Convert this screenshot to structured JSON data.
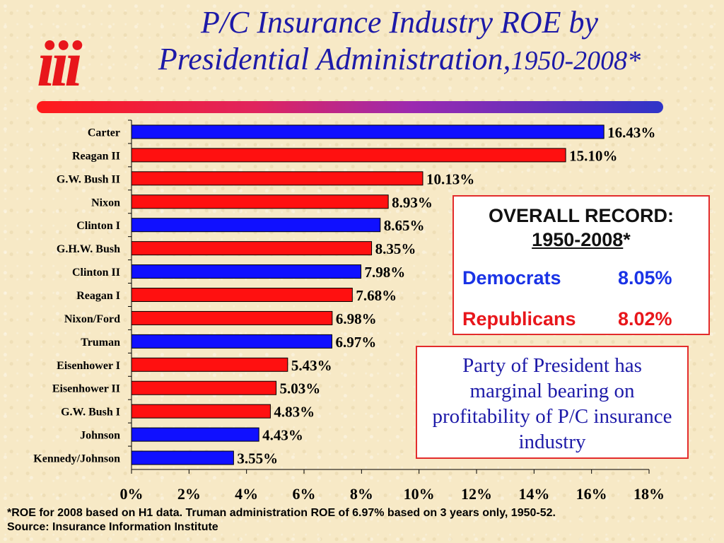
{
  "slide": {
    "title_line1": "P/C Insurance Industry ROE by",
    "title_line2": "Presidential Administration,",
    "title_years": "1950-2008*",
    "logo_text": "iii"
  },
  "record_box": {
    "heading_line1": "OVERALL RECORD:",
    "heading_years": "1950-2008",
    "heading_mark": "*",
    "democrats_label": "Democrats",
    "democrats_value": "8.05%",
    "republicans_label": "Republicans",
    "republicans_value": "8.02%",
    "democrats_color": "#1a33e6",
    "republicans_color": "#e8161b"
  },
  "note_box": {
    "text": "Party of President has marginal bearing on profitability of P/C insurance industry"
  },
  "footer": {
    "line1": "*ROE for 2008 based on H1 data.  Truman administration ROE of 6.97% based on 3 years only, 1950-52.",
    "line2": "Source: Insurance Information Institute"
  },
  "chart_data": {
    "type": "bar",
    "orientation": "horizontal",
    "categories": [
      "Carter",
      "Reagan II",
      "G.W. Bush II",
      "Nixon",
      "Clinton I",
      "G.H.W. Bush",
      "Clinton II",
      "Reagan I",
      "Nixon/Ford",
      "Truman",
      "Eisenhower I",
      "Eisenhower II",
      "G.W. Bush I",
      "Johnson",
      "Kennedy/Johnson"
    ],
    "values": [
      16.43,
      15.1,
      10.13,
      8.93,
      8.65,
      8.35,
      7.98,
      7.68,
      6.98,
      6.97,
      5.43,
      5.03,
      4.83,
      4.43,
      3.55
    ],
    "value_labels": [
      "16.43%",
      "15.10%",
      "10.13%",
      "8.93%",
      "8.65%",
      "8.35%",
      "7.98%",
      "7.68%",
      "6.98%",
      "6.97%",
      "5.43%",
      "5.03%",
      "4.83%",
      "4.43%",
      "3.55%"
    ],
    "party": [
      "D",
      "R",
      "R",
      "R",
      "D",
      "R",
      "D",
      "R",
      "R",
      "D",
      "R",
      "R",
      "R",
      "D",
      "D"
    ],
    "colors": {
      "D": "#1010ff",
      "R": "#ff1010"
    },
    "xlim": [
      0,
      18
    ],
    "xticks": [
      0,
      2,
      4,
      6,
      8,
      10,
      12,
      14,
      16,
      18
    ],
    "xtick_labels": [
      "0%",
      "2%",
      "4%",
      "6%",
      "8%",
      "10%",
      "12%",
      "14%",
      "16%",
      "18%"
    ],
    "title": "",
    "xlabel": "",
    "ylabel": "",
    "grid": false,
    "legend": "none"
  }
}
